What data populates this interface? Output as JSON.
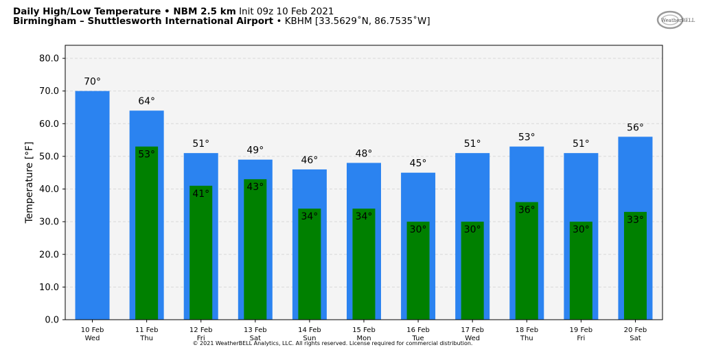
{
  "header": {
    "title_bold": "Daily High/Low Temperature • NBM 2.5 km",
    "init": "Init 09z 10 Feb 2021",
    "station_bold": "Birmingham – Shuttlesworth International Airport",
    "station_info": "• KBHM [33.5629˚N, 86.7535˚W]"
  },
  "logo_text": "WeatherBELL",
  "footer": "© 2021 WeatherBELL Analytics, LLC. All rights reserved. License required for commercial distribution.",
  "colors": {
    "high": "#2b83f0",
    "low": "#008000",
    "plot_bg": "#f4f4f4",
    "grid": "#d8d8d8"
  },
  "chart_data": {
    "type": "bar",
    "ylabel": "Temperature [°F]",
    "ylim": [
      0,
      84
    ],
    "yticks": [
      0,
      10,
      20,
      30,
      40,
      50,
      60,
      70,
      80
    ],
    "ytick_labels": [
      "0.0",
      "10.0",
      "20.0",
      "30.0",
      "40.0",
      "50.0",
      "60.0",
      "70.0",
      "80.0"
    ],
    "grid": true,
    "categories": [
      {
        "date": "10 Feb",
        "day": "Wed"
      },
      {
        "date": "11 Feb",
        "day": "Thu"
      },
      {
        "date": "12 Feb",
        "day": "Fri"
      },
      {
        "date": "13 Feb",
        "day": "Sat"
      },
      {
        "date": "14 Feb",
        "day": "Sun"
      },
      {
        "date": "15 Feb",
        "day": "Mon"
      },
      {
        "date": "16 Feb",
        "day": "Tue"
      },
      {
        "date": "17 Feb",
        "day": "Wed"
      },
      {
        "date": "18 Feb",
        "day": "Thu"
      },
      {
        "date": "19 Feb",
        "day": "Fri"
      },
      {
        "date": "20 Feb",
        "day": "Sat"
      }
    ],
    "series": [
      {
        "key": "high",
        "values": [
          70,
          64,
          51,
          49,
          46,
          48,
          45,
          51,
          53,
          51,
          56
        ],
        "labels": [
          "70°",
          "64°",
          "51°",
          "49°",
          "46°",
          "48°",
          "45°",
          "51°",
          "53°",
          "51°",
          "56°"
        ]
      },
      {
        "key": "low",
        "values": [
          null,
          53,
          41,
          43,
          34,
          34,
          30,
          30,
          36,
          30,
          33
        ],
        "labels": [
          "",
          "53°",
          "41°",
          "43°",
          "34°",
          "34°",
          "30°",
          "30°",
          "36°",
          "30°",
          "33°"
        ]
      }
    ]
  }
}
